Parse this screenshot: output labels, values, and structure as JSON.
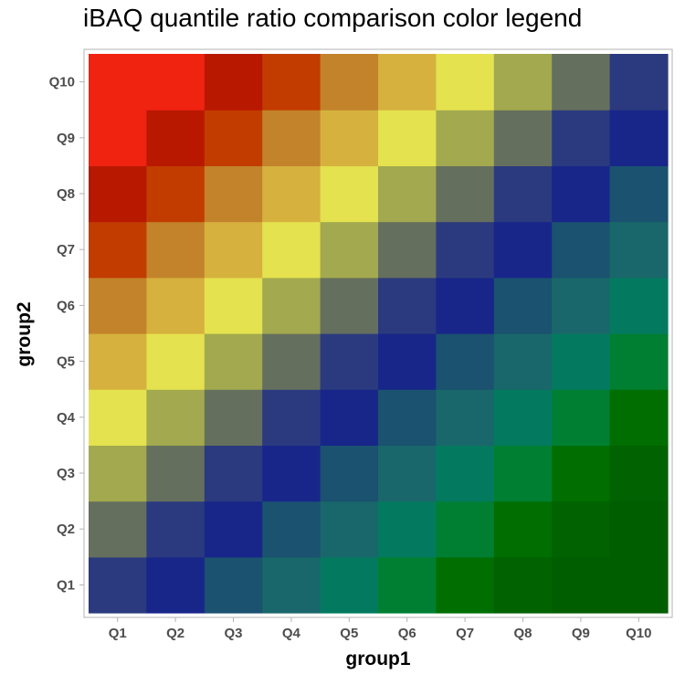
{
  "chart_data": {
    "type": "heatmap",
    "title": "iBAQ quantile ratio comparison color legend",
    "xlabel": "group1",
    "ylabel": "group2",
    "x_categories": [
      "Q1",
      "Q2",
      "Q3",
      "Q4",
      "Q5",
      "Q6",
      "Q7",
      "Q8",
      "Q9",
      "Q10"
    ],
    "y_categories": [
      "Q1",
      "Q2",
      "Q3",
      "Q4",
      "Q5",
      "Q6",
      "Q7",
      "Q8",
      "Q9",
      "Q10"
    ],
    "palette": [
      "#f02210",
      "#b81800",
      "#c23c00",
      "#c2832a",
      "#d6b13e",
      "#e4e24e",
      "#a2a94e",
      "#656f5e",
      "#2b3a7e",
      "#18268a",
      "#1a5270",
      "#19676a",
      "#037a60",
      "#007f33",
      "#006e00",
      "#006200",
      "#005e00"
    ],
    "grid": false,
    "legend": "none"
  }
}
